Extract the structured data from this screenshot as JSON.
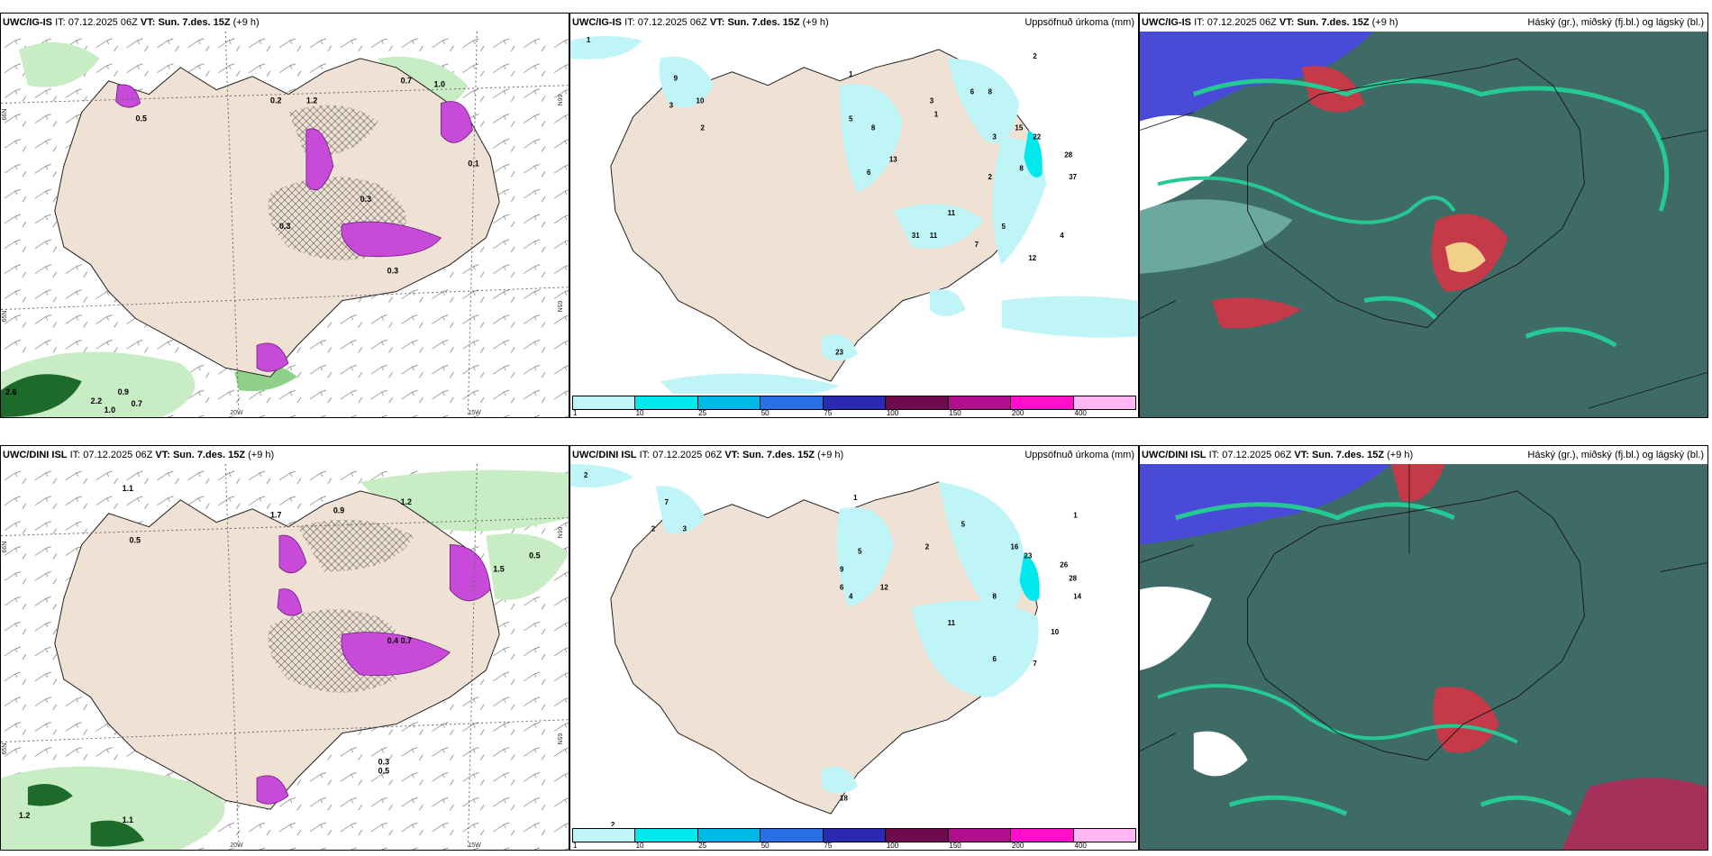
{
  "rows": [
    {
      "model": "UWC/IG-IS",
      "it_label": "IT:",
      "it_value": "07.12.2025 06Z",
      "vt_label": "VT:",
      "vt_value": "Sun. 7.des. 15Z",
      "lead": "(+9 h)",
      "panel1": {
        "lat_labels": [
          "66N",
          "65N"
        ],
        "lat_labels_right": [
          "66N",
          "65N"
        ],
        "lon_labels": [
          "20W",
          "15W"
        ],
        "values": [
          "0.7",
          "1.0",
          "0.2",
          "1.2",
          "0.5",
          "0.3",
          "0.3",
          "0.1",
          "0.3",
          "2.6",
          "2.2",
          "0.9",
          "0.7",
          "1.0"
        ]
      },
      "panel2": {
        "title": "Uppsöfnuð úrkoma (mm)",
        "values": [
          "1",
          "9",
          "10",
          "3",
          "2",
          "1",
          "5",
          "8",
          "13",
          "6",
          "3",
          "1",
          "6",
          "8",
          "3",
          "2",
          "15",
          "22",
          "28",
          "37",
          "11",
          "31",
          "7",
          "5",
          "8",
          "12",
          "4",
          "11",
          "23",
          "2"
        ]
      },
      "panel3": {
        "title": "Háský (gr.), miðský (fj.bl.) og lágský (bl.)"
      }
    },
    {
      "model": "UWC/DINI ISL",
      "it_label": "IT:",
      "it_value": "07.12.2025 06Z",
      "vt_label": "VT:",
      "vt_value": "Sun. 7.des. 15Z",
      "lead": "(+9 h)",
      "panel1": {
        "lat_labels": [
          "66N",
          "65N"
        ],
        "lat_labels_right": [
          "66N",
          "65N"
        ],
        "lon_labels": [
          "20W",
          "15W"
        ],
        "values": [
          "1.1",
          "0.5",
          "1.7",
          "0.9",
          "1.2",
          "0.5",
          "1.5",
          "0.4",
          "0.7",
          "0.3",
          "0.5",
          "1.1",
          "1.2"
        ]
      },
      "panel2": {
        "title": "Uppsöfnuð úrkoma (mm)",
        "values": [
          "2",
          "7",
          "2",
          "3",
          "1",
          "9",
          "12",
          "5",
          "6",
          "4",
          "11",
          "2",
          "5",
          "8",
          "23",
          "26",
          "28",
          "14",
          "10",
          "6",
          "7",
          "16",
          "1",
          "2",
          "18"
        ]
      },
      "panel3": {
        "title": "Háský (gr.), miðský (fj.bl.) og lágský (bl.)"
      }
    }
  ],
  "legend": {
    "ticks": [
      "1",
      "10",
      "25",
      "50",
      "75",
      "100",
      "150",
      "200",
      "400"
    ],
    "colors": [
      "#bff5f7",
      "#00e8ec",
      "#00b8e8",
      "#2a6fe4",
      "#2a2ab0",
      "#6e0a4e",
      "#b0108e",
      "#ff10c8",
      "#ffb8f4"
    ]
  },
  "colors": {
    "land": "#efe1d3",
    "sea_green_light": "#c8ecc4",
    "sea_green_dark": "#1e6a2a",
    "magenta": "#c84ad8",
    "cloud_base": "#3f6b66",
    "cloud_green": "#25c994",
    "cloud_red": "#c43a48",
    "cloud_blue": "#4a4ad8"
  }
}
